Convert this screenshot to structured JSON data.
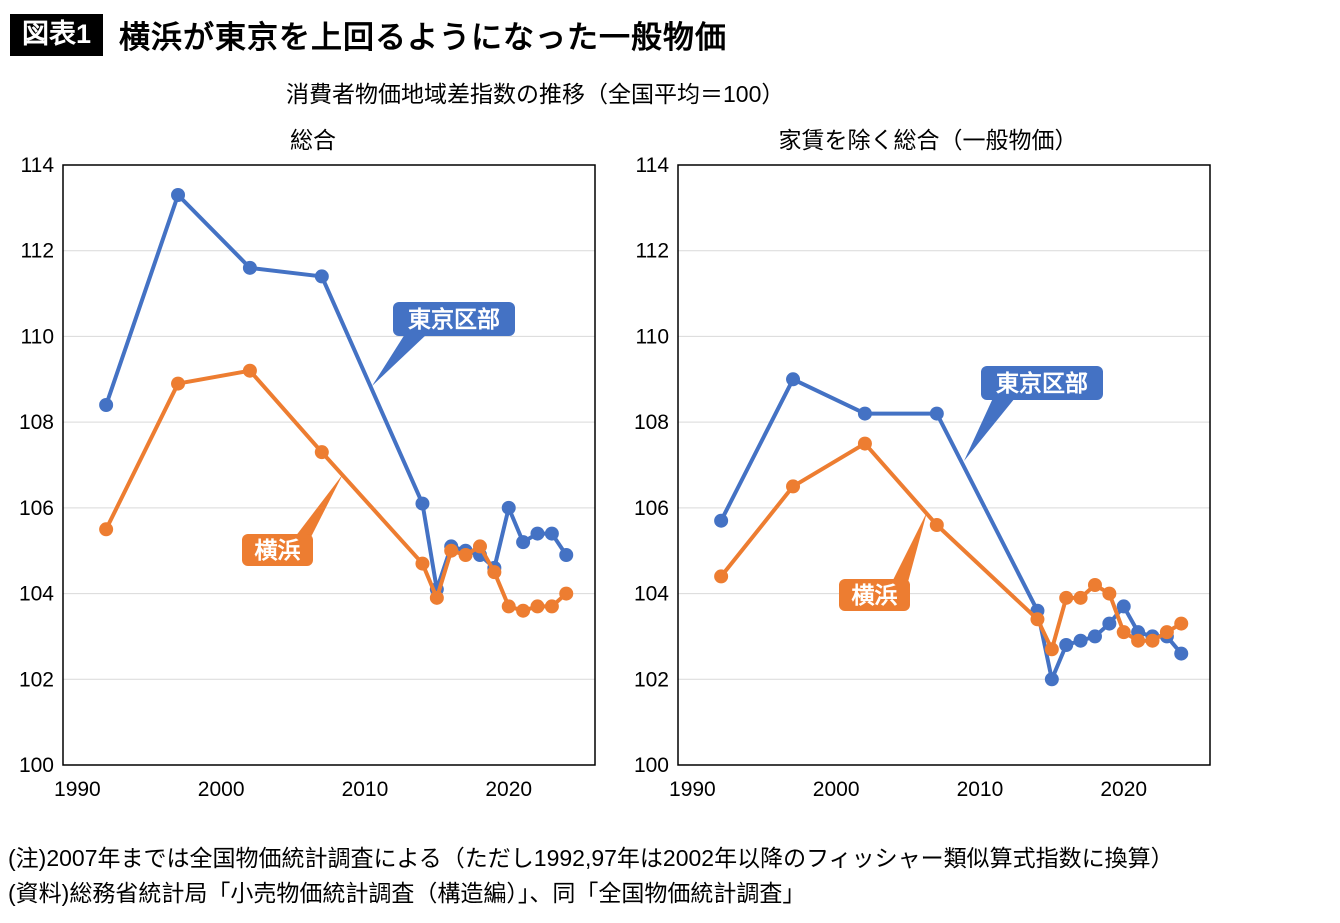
{
  "page": {
    "badge": "図表1",
    "title": "横浜が東京を上回るようになった一般物価",
    "subtitle": "消費者物価地域差指数の推移（全国平均＝100）",
    "notes": [
      "(注)2007年までは全国物価統計調査による（ただし1992,97年は2002年以降のフィッシャー類似算式指数に換算）",
      "(資料)総務省統計局「小売物価統計調査（構造編）」、同「全国物価統計調査」"
    ]
  },
  "colors": {
    "tokyo": "#4472c4",
    "yokohama": "#ed7d31",
    "grid": "#d9d9d9",
    "axis": "#000000",
    "callout_text": "#ffffff"
  },
  "chart_data": [
    {
      "type": "line",
      "title": "総合",
      "xlabel": "",
      "ylabel": "",
      "x": [
        1992,
        1997,
        2002,
        2007,
        2014,
        2015,
        2016,
        2017,
        2018,
        2019,
        2020,
        2021,
        2022,
        2023,
        2024
      ],
      "series": [
        {
          "name": "東京区部",
          "color_key": "tokyo",
          "values": [
            108.4,
            113.3,
            111.6,
            111.4,
            106.1,
            104.1,
            105.1,
            105.0,
            104.9,
            104.6,
            106.0,
            105.2,
            105.4,
            105.4,
            104.9
          ]
        },
        {
          "name": "横浜",
          "color_key": "yokohama",
          "values": [
            105.5,
            108.9,
            109.2,
            107.3,
            104.7,
            103.9,
            105.0,
            104.9,
            105.1,
            104.5,
            103.7,
            103.6,
            103.7,
            103.7,
            104.0
          ]
        }
      ],
      "ylim": [
        100,
        114
      ],
      "ytick_step": 2,
      "xticks": [
        1990,
        2000,
        2010,
        2020
      ],
      "xlim": [
        1989,
        2026
      ],
      "grid": true,
      "legend": "callout-labels"
    },
    {
      "type": "line",
      "title": "家賃を除く総合（一般物価）",
      "xlabel": "",
      "ylabel": "",
      "x": [
        1992,
        1997,
        2002,
        2007,
        2014,
        2015,
        2016,
        2017,
        2018,
        2019,
        2020,
        2021,
        2022,
        2023,
        2024
      ],
      "series": [
        {
          "name": "東京区部",
          "color_key": "tokyo",
          "values": [
            105.7,
            109.0,
            108.2,
            108.2,
            103.6,
            102.0,
            102.8,
            102.9,
            103.0,
            103.3,
            103.7,
            103.1,
            103.0,
            103.0,
            102.6
          ]
        },
        {
          "name": "横浜",
          "color_key": "yokohama",
          "values": [
            104.4,
            106.5,
            107.5,
            105.6,
            103.4,
            102.7,
            103.9,
            103.9,
            104.2,
            104.0,
            103.1,
            102.9,
            102.9,
            103.1,
            103.3
          ]
        }
      ],
      "ylim": [
        100,
        114
      ],
      "ytick_step": 2,
      "xticks": [
        1990,
        2000,
        2010,
        2020
      ],
      "xlim": [
        1989,
        2026
      ],
      "grid": true,
      "legend": "callout-labels"
    }
  ]
}
